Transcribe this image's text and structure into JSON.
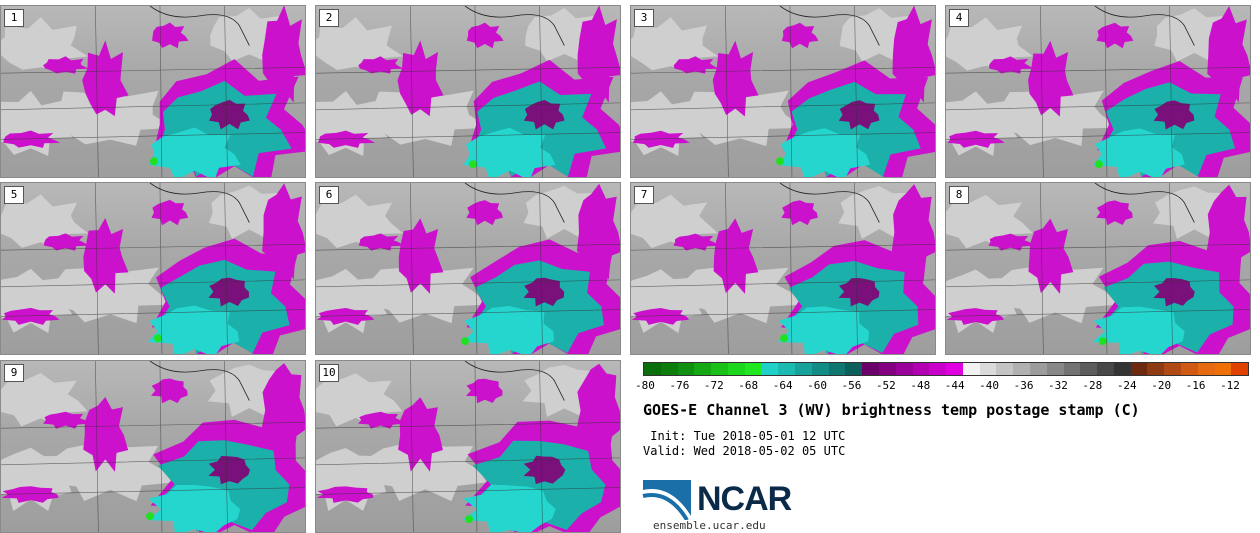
{
  "panels": [
    {
      "label": "1"
    },
    {
      "label": "2"
    },
    {
      "label": "3"
    },
    {
      "label": "4"
    },
    {
      "label": "5"
    },
    {
      "label": "6"
    },
    {
      "label": "7"
    },
    {
      "label": "8"
    },
    {
      "label": "9"
    },
    {
      "label": "10"
    }
  ],
  "colorbar": {
    "colors": [
      "#0a6e0a",
      "#0d7d0d",
      "#109010",
      "#14a814",
      "#18c018",
      "#1cd81c",
      "#20e820",
      "#1fd1c8",
      "#1bbab3",
      "#17a39c",
      "#138c86",
      "#0f7670",
      "#0b605b",
      "#6b006b",
      "#830083",
      "#9a009a",
      "#b200b2",
      "#c900c9",
      "#e000e0",
      "#f2f2f2",
      "#dadada",
      "#c4c4c4",
      "#b0b0b0",
      "#9c9c9c",
      "#878787",
      "#727272",
      "#5d5d5d",
      "#484848",
      "#343434",
      "#6e2a10",
      "#8e3a12",
      "#b04a14",
      "#d05a14",
      "#e86a10",
      "#f07008",
      "#e04000"
    ],
    "tick_labels": [
      "-80",
      "-76",
      "-72",
      "-68",
      "-64",
      "-60",
      "-56",
      "-52",
      "-48",
      "-44",
      "-40",
      "-36",
      "-32",
      "-28",
      "-24",
      "-20",
      "-16",
      "-12"
    ]
  },
  "title": "GOES-E Channel 3 (WV) brightness temp postage stamp (C)",
  "init": " Init: Tue 2018-05-01 12 UTC",
  "valid": "Valid: Wed 2018-05-02 05 UTC",
  "logo": {
    "name": "NCAR",
    "url": "ensemble.ucar.edu",
    "colors": {
      "arc": "#1a6fa8",
      "text": "#0b2a4a"
    }
  },
  "map_colors": {
    "background": "#a8a8a8",
    "light_gray": "#cfcfcf",
    "magenta": "#cc11cc",
    "dark_magenta": "#7a107a",
    "teal": "#1bb0aa",
    "cyan": "#25d6cf",
    "green": "#20e020"
  }
}
